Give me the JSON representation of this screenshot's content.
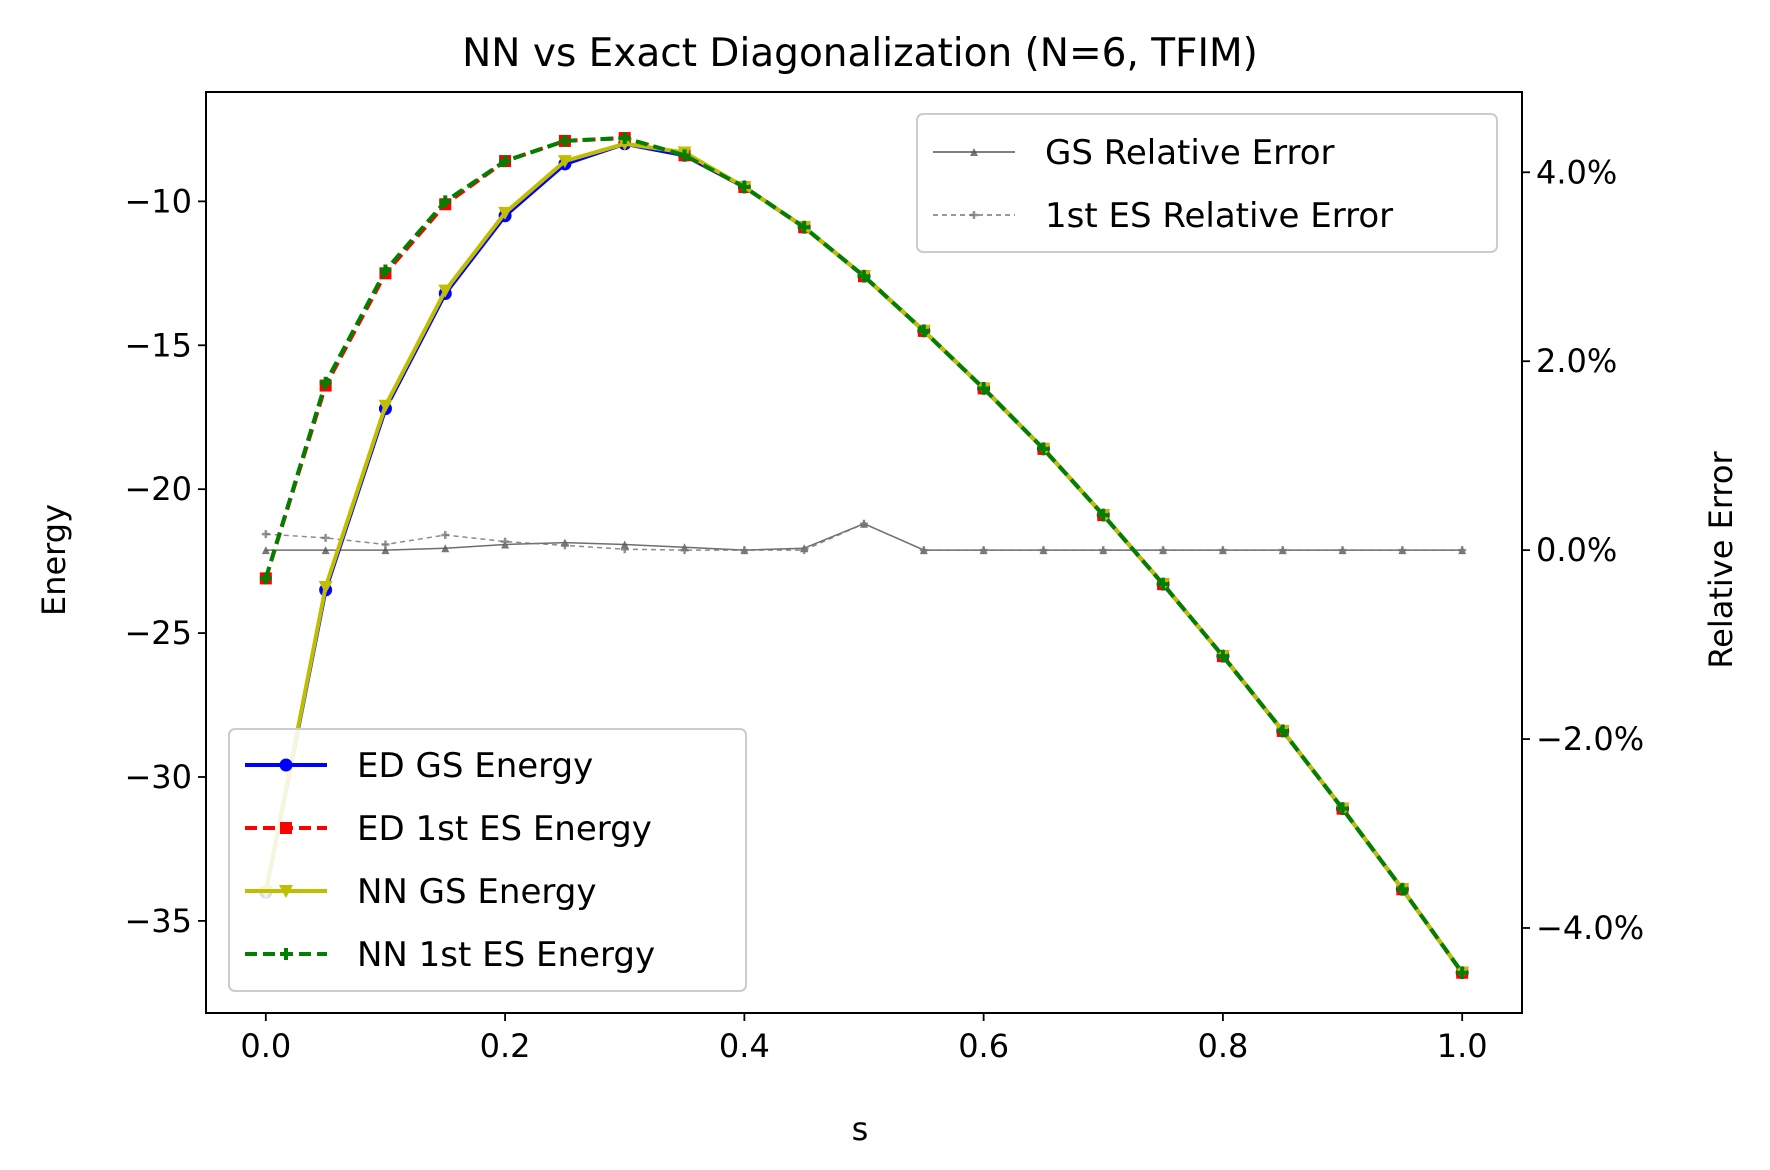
{
  "chart_data": {
    "type": "line",
    "title": "NN vs Exact Diagonalization (N=6, TFIM)",
    "xlabel": "s",
    "ylabel": "Energy",
    "y2label": "Relative Error",
    "xlim": [
      -0.05,
      1.05
    ],
    "ylim": [
      -38.2,
      -6.2
    ],
    "y2lim": [
      -4.9,
      4.85
    ],
    "xticks": [
      0.0,
      0.2,
      0.4,
      0.6,
      0.8,
      1.0
    ],
    "xtick_labels": [
      "0.0",
      "0.2",
      "0.4",
      "0.6",
      "0.8",
      "1.0"
    ],
    "yticks": [
      -10,
      -15,
      -20,
      -25,
      -30,
      -35
    ],
    "ytick_labels": [
      "−10",
      "−15",
      "−20",
      "−25",
      "−30",
      "−35"
    ],
    "y2ticks": [
      4.0,
      2.0,
      0.0,
      -2.0,
      -4.0
    ],
    "y2tick_labels": [
      "4.0%",
      "2.0%",
      "0.0%",
      "−2.0%",
      "−4.0%"
    ],
    "x": [
      0.0,
      0.05,
      0.1,
      0.15,
      0.2,
      0.25,
      0.3,
      0.35,
      0.4,
      0.45,
      0.5,
      0.55,
      0.6,
      0.65,
      0.7,
      0.75,
      0.8,
      0.85,
      0.9,
      0.95,
      1.0
    ],
    "series": [
      {
        "name": "ED GS Energy",
        "axis": "left",
        "color": "#0000ff",
        "dash": "",
        "marker": "circle",
        "values": [
          -34.0,
          -23.5,
          -17.2,
          -13.2,
          -10.5,
          -8.7,
          -8.0,
          -8.4,
          -9.5,
          -10.9,
          -12.6,
          -14.5,
          -16.5,
          -18.6,
          -20.9,
          -23.3,
          -25.8,
          -28.4,
          -31.1,
          -33.9,
          -36.8
        ]
      },
      {
        "name": "ED 1st ES Energy",
        "axis": "left",
        "color": "#ff0000",
        "dash": "12,6",
        "marker": "square",
        "values": [
          -23.1,
          -16.4,
          -12.5,
          -10.1,
          -8.6,
          -7.9,
          -7.8,
          -8.4,
          -9.5,
          -10.9,
          -12.6,
          -14.5,
          -16.5,
          -18.6,
          -20.9,
          -23.3,
          -25.8,
          -28.4,
          -31.1,
          -33.9,
          -36.8
        ]
      },
      {
        "name": "NN GS Energy",
        "axis": "left",
        "color": "#bfbf00",
        "dash": "",
        "marker": "triangle-down",
        "values": [
          -34.0,
          -23.4,
          -17.1,
          -13.1,
          -10.4,
          -8.6,
          -8.0,
          -8.3,
          -9.5,
          -10.9,
          -12.6,
          -14.5,
          -16.5,
          -18.6,
          -20.9,
          -23.3,
          -25.8,
          -28.4,
          -31.1,
          -33.9,
          -36.8
        ]
      },
      {
        "name": "NN 1st ES Energy",
        "axis": "left",
        "color": "#008000",
        "dash": "12,6",
        "marker": "plus",
        "values": [
          -23.1,
          -16.3,
          -12.4,
          -10.0,
          -8.6,
          -7.9,
          -7.8,
          -8.4,
          -9.5,
          -10.9,
          -12.6,
          -14.5,
          -16.5,
          -18.6,
          -20.9,
          -23.3,
          -25.8,
          -28.4,
          -31.1,
          -33.9,
          -36.8
        ]
      },
      {
        "name": "GS Relative Error",
        "axis": "right",
        "color": "#555555",
        "dash": "",
        "marker": "small-triangle",
        "values": [
          0.0,
          0.0,
          0.0,
          0.02,
          0.06,
          0.08,
          0.06,
          0.03,
          0.0,
          0.02,
          0.28,
          0.0,
          0.0,
          0.0,
          0.0,
          0.0,
          0.0,
          0.0,
          0.0,
          0.0,
          0.0
        ]
      },
      {
        "name": "1st ES Relative Error",
        "axis": "right",
        "color": "#777777",
        "dash": "5,4",
        "marker": "small-plus",
        "values": [
          0.17,
          0.13,
          0.06,
          0.16,
          0.09,
          0.05,
          0.01,
          0.0,
          0.0,
          0.0,
          0.28,
          0.0,
          0.0,
          0.0,
          0.0,
          0.0,
          0.0,
          0.0,
          0.0,
          0.0,
          0.0
        ]
      }
    ],
    "legends": [
      {
        "placement": "upper-right",
        "entries": [
          "GS Relative Error",
          "1st ES Relative Error"
        ]
      },
      {
        "placement": "lower-left",
        "entries": [
          "ED GS Energy",
          "ED 1st ES Energy",
          "NN GS Energy",
          "NN 1st ES Energy"
        ]
      }
    ],
    "grid": false
  }
}
